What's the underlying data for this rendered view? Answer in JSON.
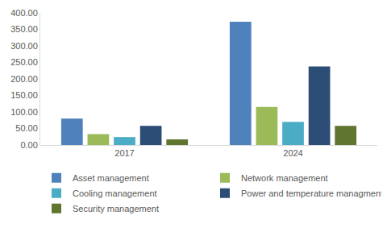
{
  "chart_data": {
    "type": "bar",
    "categories": [
      "2017",
      "2024"
    ],
    "series": [
      {
        "name": "Asset management",
        "color": "#4f81bd",
        "values": [
          80,
          373
        ]
      },
      {
        "name": "Network management",
        "color": "#9bbb59",
        "values": [
          33,
          115
        ]
      },
      {
        "name": "Cooling management",
        "color": "#4bacc6",
        "values": [
          24,
          70
        ]
      },
      {
        "name": "Power and temperature managment",
        "color": "#2c4d75",
        "values": [
          58,
          238
        ]
      },
      {
        "name": "Security management",
        "color": "#5f7530",
        "values": [
          17,
          58
        ]
      }
    ],
    "ylim": [
      0,
      400
    ],
    "yticks": [
      {
        "value": 0,
        "label": "0.00"
      },
      {
        "value": 50,
        "label": "50.00"
      },
      {
        "value": 100,
        "label": "100.00"
      },
      {
        "value": 150,
        "label": "150.00"
      },
      {
        "value": 200,
        "label": "200.00"
      },
      {
        "value": 250,
        "label": "250.00"
      },
      {
        "value": 300,
        "label": "300.00"
      },
      {
        "value": 350,
        "label": "350.00"
      },
      {
        "value": 400,
        "label": "400.00"
      }
    ],
    "grid": false,
    "legend": "bottom"
  }
}
